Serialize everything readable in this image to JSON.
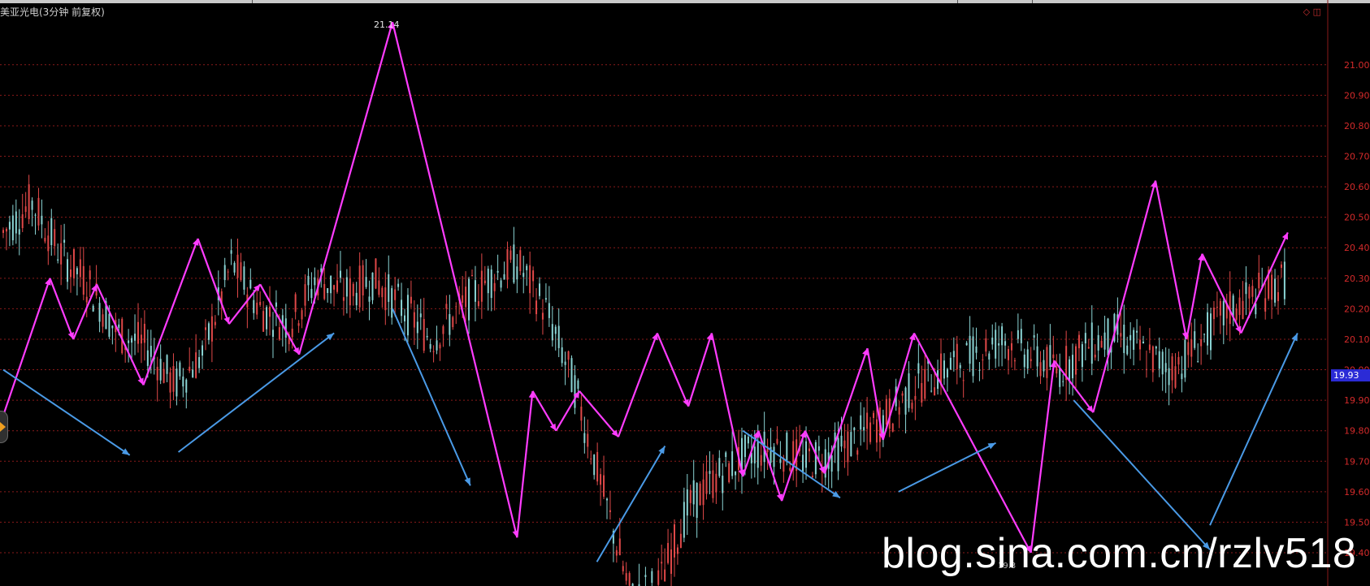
{
  "header": {
    "title": "美亚光电(3分钟 前复权)",
    "controls": "◇ ◫"
  },
  "annotations": {
    "peak_label": "21.14",
    "low_label": "19.3",
    "current_price": "19.93"
  },
  "watermark": "blog.sina.com.cn/rzlv518",
  "colors": {
    "background": "#000000",
    "grid": "#8a1a1a",
    "axis_text": "#d42a2a",
    "candle_up": "#e04848",
    "candle_down": "#8ad4d4",
    "zigzag": "#ff3cff",
    "trend_arrow": "#4a9ae6"
  },
  "chart_data": {
    "type": "candlestick",
    "title": "美亚光电(3分钟 前复权)",
    "ylim": [
      19.4,
      21.05
    ],
    "y_ticks": [
      "21.00",
      "20.90",
      "20.80",
      "20.70",
      "20.60",
      "20.50",
      "20.40",
      "20.30",
      "20.20",
      "20.10",
      "20.00",
      "19.90",
      "19.80",
      "19.70",
      "19.60",
      "19.50",
      "19.40"
    ],
    "bar_count": 210,
    "close_path": [
      [
        0,
        20.45
      ],
      [
        6,
        20.55
      ],
      [
        12,
        20.38
      ],
      [
        18,
        20.28
      ],
      [
        24,
        20.12
      ],
      [
        30,
        20.08
      ],
      [
        36,
        19.95
      ],
      [
        42,
        20.05
      ],
      [
        48,
        20.35
      ],
      [
        54,
        20.2
      ],
      [
        60,
        20.15
      ],
      [
        66,
        20.3
      ],
      [
        72,
        20.25
      ],
      [
        78,
        20.3
      ],
      [
        84,
        20.2
      ],
      [
        90,
        20.1
      ],
      [
        96,
        20.2
      ],
      [
        102,
        20.3
      ],
      [
        108,
        20.35
      ],
      [
        114,
        20.2
      ],
      [
        120,
        19.95
      ],
      [
        126,
        19.6
      ],
      [
        132,
        19.25
      ],
      [
        138,
        19.3
      ],
      [
        144,
        19.55
      ],
      [
        150,
        19.65
      ],
      [
        156,
        19.72
      ],
      [
        162,
        19.75
      ],
      [
        168,
        19.7
      ],
      [
        174,
        19.72
      ],
      [
        180,
        19.78
      ],
      [
        186,
        19.85
      ],
      [
        192,
        19.95
      ],
      [
        198,
        20.0
      ],
      [
        204,
        20.05
      ],
      [
        210,
        20.1
      ],
      [
        216,
        20.05
      ],
      [
        222,
        20.0
      ],
      [
        228,
        20.08
      ],
      [
        234,
        20.12
      ],
      [
        240,
        20.05
      ],
      [
        246,
        20.0
      ],
      [
        252,
        20.1
      ],
      [
        258,
        20.2
      ],
      [
        264,
        20.25
      ],
      [
        270,
        20.3
      ]
    ],
    "close_x_scale_note": "close_path x given in index units 0-270",
    "zigzag": [
      [
        0,
        19.85
      ],
      [
        12,
        20.3
      ],
      [
        18,
        20.1
      ],
      [
        24,
        20.28
      ],
      [
        36,
        19.95
      ],
      [
        50,
        20.43
      ],
      [
        58,
        20.15
      ],
      [
        66,
        20.28
      ],
      [
        76,
        20.05
      ],
      [
        100,
        21.14
      ],
      [
        132,
        19.45
      ],
      [
        136,
        19.93
      ],
      [
        142,
        19.8
      ],
      [
        148,
        19.93
      ],
      [
        158,
        19.78
      ],
      [
        168,
        20.12
      ],
      [
        176,
        19.88
      ],
      [
        182,
        20.12
      ],
      [
        190,
        19.65
      ],
      [
        194,
        19.8
      ],
      [
        200,
        19.57
      ],
      [
        206,
        19.8
      ],
      [
        211,
        19.66
      ],
      [
        222,
        20.07
      ],
      [
        226,
        19.77
      ],
      [
        234,
        20.12
      ],
      [
        264,
        19.4
      ],
      [
        270,
        20.03
      ],
      [
        280,
        19.86
      ],
      [
        296,
        20.62
      ],
      [
        304,
        20.1
      ],
      [
        308,
        20.38
      ],
      [
        318,
        20.12
      ],
      [
        330,
        20.45
      ]
    ],
    "trend_arrows": [
      [
        [
          0,
          20.0
        ],
        [
          26,
          19.72
        ]
      ],
      [
        [
          36,
          19.73
        ],
        [
          68,
          20.12
        ]
      ],
      [
        [
          80,
          20.2
        ],
        [
          96,
          19.62
        ]
      ],
      [
        [
          122,
          19.37
        ],
        [
          136,
          19.75
        ]
      ],
      [
        [
          152,
          19.8
        ],
        [
          172,
          19.58
        ]
      ],
      [
        [
          184,
          19.6
        ],
        [
          204,
          19.76
        ]
      ],
      [
        [
          220,
          19.9
        ],
        [
          248,
          19.41
        ]
      ],
      [
        [
          248,
          19.49
        ],
        [
          266,
          20.12
        ]
      ]
    ],
    "trend_arrows_note": "lines drawn between (index, price) pairs",
    "peak": {
      "label": "21.14"
    },
    "low": {
      "label": "19.3"
    },
    "current": 19.93
  }
}
